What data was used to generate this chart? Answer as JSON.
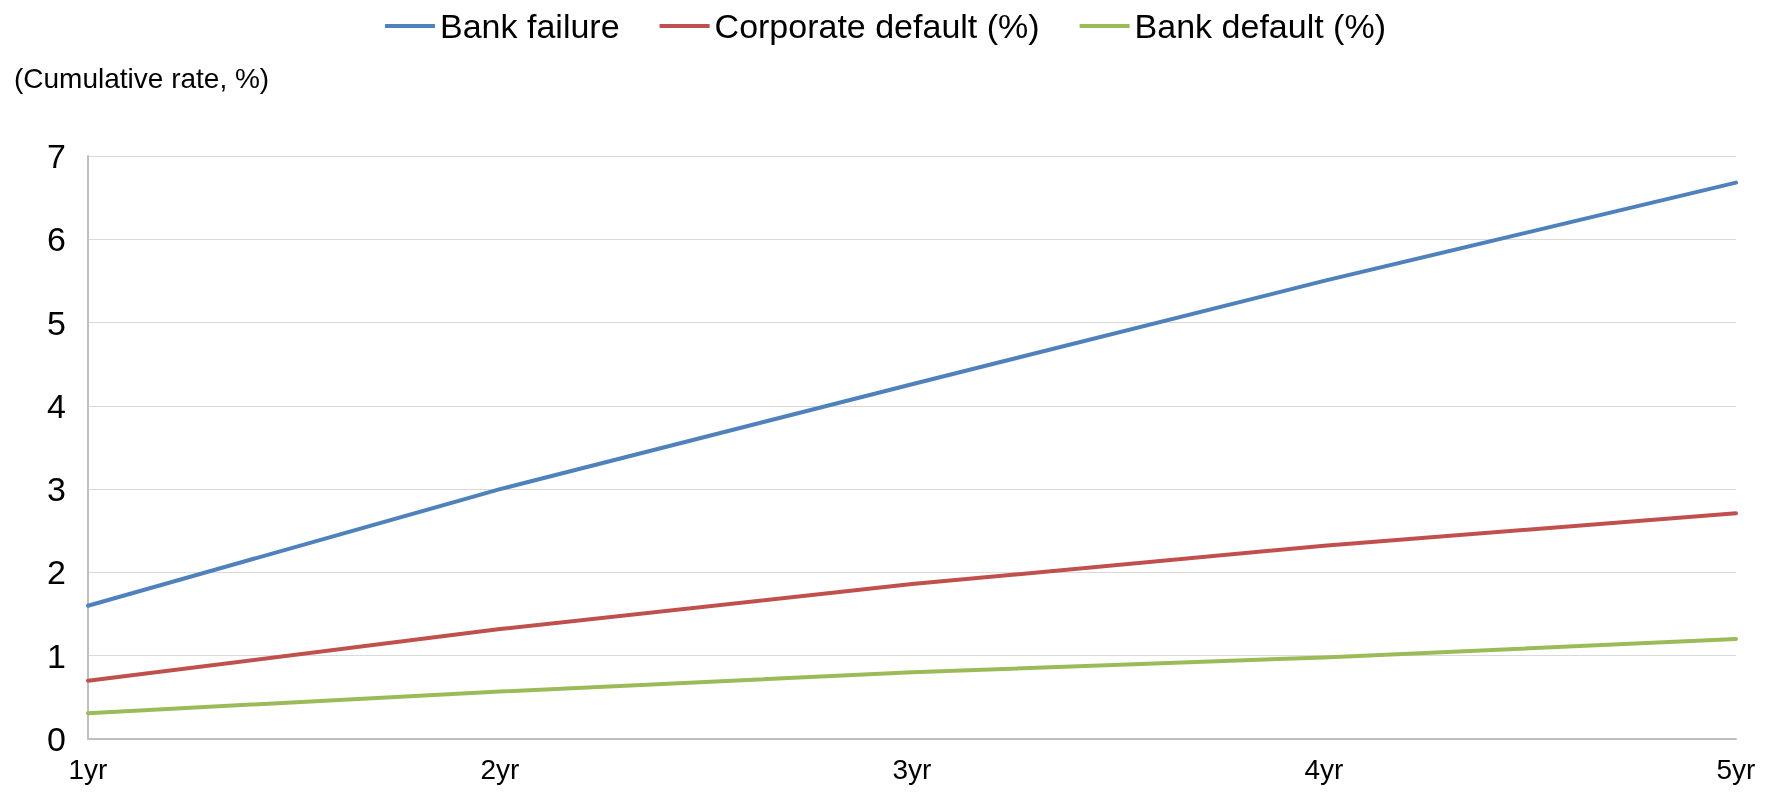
{
  "chart_data": {
    "type": "line",
    "ylabel": "(Cumulative rate, %)",
    "categories": [
      "1yr",
      "2yr",
      "3yr",
      "4yr",
      "5yr"
    ],
    "series": [
      {
        "name": "Bank failure",
        "color": "#4f81bd",
        "values": [
          1.6,
          3.0,
          4.26,
          5.5,
          6.68
        ]
      },
      {
        "name": "Corporate default (%)",
        "color": "#c0504d",
        "values": [
          0.7,
          1.32,
          1.86,
          2.32,
          2.71
        ]
      },
      {
        "name": "Bank default (%)",
        "color": "#9bbb59",
        "values": [
          0.31,
          0.57,
          0.8,
          0.98,
          1.2
        ]
      }
    ],
    "ylim": [
      0,
      7
    ],
    "yticks": [
      0,
      1,
      2,
      3,
      4,
      5,
      6,
      7
    ],
    "grid": "y",
    "legend": "top",
    "marker": "none",
    "line_style": "solid"
  }
}
